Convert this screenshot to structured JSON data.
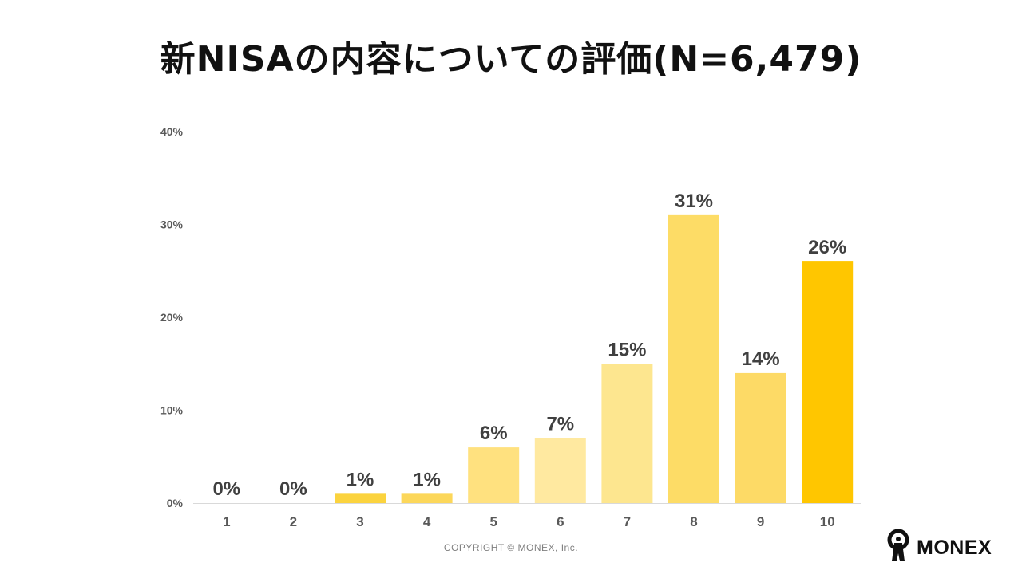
{
  "title": "新NISAの内容についての評価(N=6,479)",
  "footer": {
    "copyright": "COPYRIGHT © MONEX, Inc.",
    "brand": "MONEX"
  },
  "chart_data": {
    "type": "bar",
    "title": "新NISAの内容についての評価(N=6,479)",
    "xlabel": "",
    "ylabel": "",
    "categories": [
      "1",
      "2",
      "3",
      "4",
      "5",
      "6",
      "7",
      "8",
      "9",
      "10"
    ],
    "values": [
      0,
      0,
      1,
      1,
      6,
      7,
      15,
      31,
      14,
      26
    ],
    "data_labels": [
      "0%",
      "0%",
      "1%",
      "1%",
      "6%",
      "7%",
      "15%",
      "31%",
      "14%",
      "26%"
    ],
    "colors": [
      "#ffd966",
      "#ffd966",
      "#fbd33e",
      "#fcd75a",
      "#ffe17f",
      "#ffe9a0",
      "#fde68f",
      "#fddc66",
      "#fdda66",
      "#ffc600"
    ],
    "ylim": [
      0,
      40
    ],
    "yticks": [
      0,
      10,
      20,
      30,
      40
    ],
    "ytick_labels": [
      "0%",
      "10%",
      "20%",
      "30%",
      "40%"
    ],
    "grid": false,
    "legend": "none"
  }
}
